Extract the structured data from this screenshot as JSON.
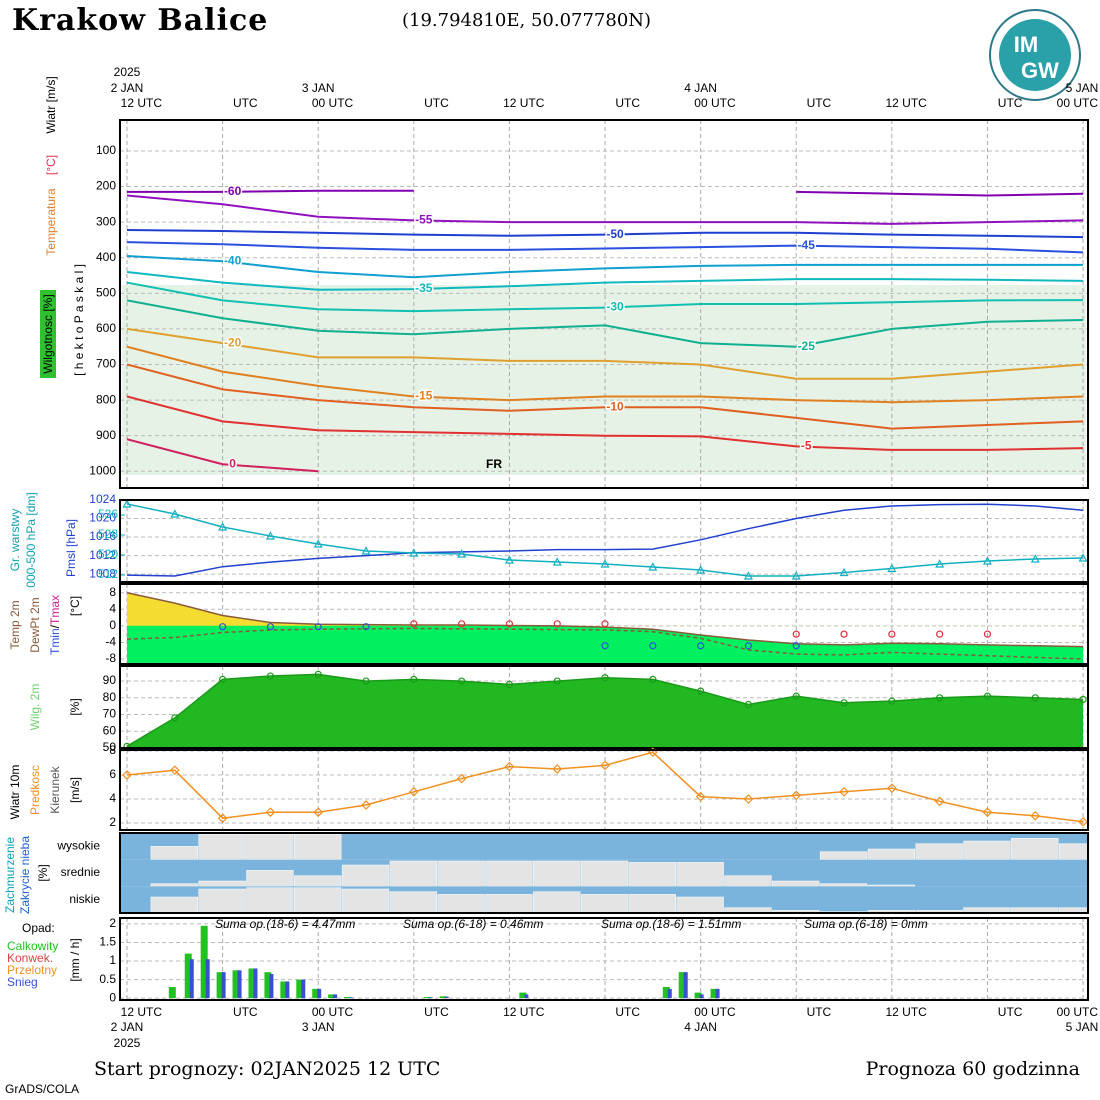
{
  "header": {
    "title": "Krakow Balice",
    "coords": "(19.794810E, 50.077780N)",
    "logo": [
      "IM",
      "GW"
    ]
  },
  "footer": {
    "start": "Start prognozy: 02JAN2025 12 UTC",
    "length": "Prognoza 60 godzinna",
    "credit": "GrADS/COLA"
  },
  "time_axis": {
    "year": "2025",
    "dates": [
      {
        "value": 0,
        "label": "2 JAN"
      },
      {
        "value": 12,
        "label": "3 JAN"
      },
      {
        "value": 36,
        "label": "4 JAN"
      },
      {
        "value": 60,
        "label": "5 JAN"
      }
    ],
    "xticks": [
      {
        "value": 0,
        "label": "12 UTC"
      },
      {
        "value": 6,
        "label": "UTC"
      },
      {
        "value": 12,
        "label": "00 UTC"
      },
      {
        "value": 18,
        "label": "UTC"
      },
      {
        "value": 24,
        "label": "12 UTC"
      },
      {
        "value": 30,
        "label": "UTC"
      },
      {
        "value": 36,
        "label": "00 UTC"
      },
      {
        "value": 42,
        "label": "UTC"
      },
      {
        "value": 48,
        "label": "12 UTC"
      },
      {
        "value": 54,
        "label": "UTC"
      },
      {
        "value": 60,
        "label": "00 UTC"
      }
    ]
  },
  "chart_data": [
    {
      "type": "line",
      "contour_labels": true,
      "grid": true,
      "xlim": [
        -0.44,
        60.31
      ],
      "ylim": [
        1047,
        13
      ],
      "yticks": [
        100,
        200,
        300,
        400,
        500,
        600,
        700,
        800,
        900,
        1000
      ],
      "y_label": "[ h e k t o P a s k a l ]",
      "axis_labels": [
        "Wiatr [m/s]",
        "Temperatura",
        "[°C]",
        "Wilgotnosc [%]"
      ],
      "annotations": [
        "FR"
      ],
      "x": [
        0,
        6,
        12,
        18,
        24,
        30,
        36,
        42,
        48,
        54,
        60
      ],
      "series": [
        {
          "name": "-60",
          "color": "#8000b0",
          "values": [
            215,
            215,
            212,
            212,
            null,
            null,
            null,
            215,
            220,
            225,
            220
          ]
        },
        {
          "name": "-55",
          "color": "#9010c0",
          "values": [
            225,
            250,
            285,
            295,
            300,
            300,
            300,
            300,
            305,
            300,
            295
          ]
        },
        {
          "name": "-50",
          "color": "#1f3fd0",
          "values": [
            322,
            325,
            330,
            335,
            338,
            335,
            330,
            330,
            335,
            338,
            342
          ]
        },
        {
          "name": "-45",
          "color": "#2a50e0",
          "values": [
            356,
            362,
            372,
            378,
            378,
            374,
            370,
            366,
            370,
            375,
            385
          ]
        },
        {
          "name": "-40",
          "color": "#10a0d0",
          "values": [
            395,
            410,
            440,
            455,
            440,
            430,
            423,
            420,
            420,
            420,
            420
          ]
        },
        {
          "name": "-35",
          "color": "#10b8c0",
          "values": [
            440,
            470,
            490,
            488,
            480,
            470,
            465,
            460,
            460,
            462,
            465
          ]
        },
        {
          "name": "-30",
          "color": "#10c0b0",
          "values": [
            470,
            520,
            545,
            550,
            545,
            540,
            530,
            530,
            525,
            520,
            519
          ]
        },
        {
          "name": "-25",
          "color": "#10b090",
          "values": [
            520,
            570,
            605,
            615,
            600,
            590,
            640,
            650,
            600,
            580,
            575
          ]
        },
        {
          "name": "-20",
          "color": "#e0a030",
          "values": [
            600,
            640,
            680,
            680,
            690,
            690,
            700,
            740,
            740,
            720,
            700
          ]
        },
        {
          "name": "-15",
          "color": "#e08020",
          "values": [
            650,
            720,
            760,
            790,
            800,
            790,
            790,
            800,
            806,
            800,
            790
          ]
        },
        {
          "name": "-10",
          "color": "#e06020",
          "values": [
            700,
            770,
            800,
            820,
            830,
            820,
            820,
            850,
            880,
            870,
            860
          ]
        },
        {
          "name": "-5",
          "color": "#e03030",
          "values": [
            790,
            860,
            885,
            890,
            895,
            900,
            902,
            930,
            940,
            940,
            935
          ]
        },
        {
          "name": "0",
          "color": "#d02060",
          "values": [
            910,
            980,
            1000,
            null,
            null,
            null,
            null,
            null,
            null,
            null,
            null
          ]
        }
      ]
    },
    {
      "type": "line",
      "grid": true,
      "xlim": [
        -0.44,
        60.31
      ],
      "ylim": [
        1006.3,
        1024
      ],
      "yticks": [
        1008,
        1012,
        1016,
        1020,
        1024
      ],
      "y2lim": [
        509.2,
        542
      ],
      "y2ticks": [
        512,
        520,
        528,
        536
      ],
      "y2color": "#10b0c0",
      "axis_labels": [
        "Gr. warstwy"
      ],
      "x": [
        0,
        3,
        6,
        9,
        12,
        15,
        18,
        21,
        24,
        27,
        30,
        33,
        36,
        39,
        42,
        45,
        48,
        51,
        54,
        57,
        60
      ],
      "series": [
        {
          "name": "Pmsl [hPa]",
          "color": "#2040d0",
          "values": [
            1007.8,
            1007.6,
            1009.6,
            1010.6,
            1011.4,
            1012.0,
            1012.6,
            1012.8,
            1013.0,
            1013.3,
            1013.3,
            1013.4,
            1015.4,
            1017.8,
            1020.0,
            1021.8,
            1022.7,
            1023.0,
            1023.1,
            1022.7,
            1021.8
          ]
        },
        {
          "name": "000-500 hPa [dm]",
          "color": "#10b0c0",
          "axis": "y2",
          "marker": "triangle",
          "values": [
            540.4,
            536.4,
            531.2,
            527.6,
            524.4,
            521.6,
            520.8,
            520.4,
            518.0,
            517.2,
            516.4,
            515.2,
            514.0,
            511.6,
            511.6,
            513.0,
            514.6,
            516.4,
            517.6,
            518.4,
            518.8
          ]
        }
      ]
    },
    {
      "type": "line",
      "grid": true,
      "xlim": [
        -0.44,
        60.31
      ],
      "ylim": [
        -9.2,
        10.1
      ],
      "yticks": [
        -8,
        -4,
        0,
        4,
        8
      ],
      "axis_labels": [
        "/",
        "[°C]"
      ],
      "x": [
        0,
        3,
        6,
        9,
        12,
        15,
        18,
        21,
        24,
        27,
        30,
        33,
        36,
        39,
        42,
        45,
        48,
        51,
        54,
        57,
        60
      ],
      "series": [
        {
          "name": "Temp 2m",
          "color": "#8a5a3a",
          "fill": "#00f060",
          "fill_positive": "#f4dc30",
          "values": [
            8,
            5.5,
            2.5,
            0.8,
            0.4,
            0.3,
            0.2,
            0.2,
            0.1,
            0,
            -0.3,
            -0.8,
            -2.2,
            -3.4,
            -4.3,
            -4.6,
            -4.2,
            -4.3,
            -4.6,
            -4.8,
            -5.0
          ]
        },
        {
          "name": "DewPt 2m",
          "color": "#8a5a3a",
          "dash": true,
          "values": [
            -3.2,
            -2.8,
            -1.6,
            -1.0,
            -0.8,
            -0.7,
            -0.6,
            -0.7,
            -0.8,
            -0.9,
            -1.0,
            -1.4,
            -3.0,
            -5.8,
            -6.8,
            -7.0,
            -6.4,
            -6.8,
            -7.2,
            -7.6,
            -8.0
          ]
        },
        {
          "name": "Tmin",
          "color": "#3050e0",
          "marker": "circle",
          "values": [
            null,
            null,
            -0.2,
            -0.2,
            -0.2,
            -0.2,
            null,
            null,
            null,
            null,
            -4.8,
            -4.8,
            -4.8,
            -4.8,
            -4.8,
            null,
            null,
            null,
            null,
            null,
            null
          ]
        },
        {
          "name": "Tmax",
          "color": "#e03040",
          "marker": "circle",
          "values": [
            null,
            null,
            null,
            null,
            null,
            null,
            0.5,
            0.5,
            0.5,
            0.5,
            0.5,
            null,
            null,
            null,
            -2,
            -2,
            -2,
            -2,
            -2,
            null,
            null
          ]
        }
      ]
    },
    {
      "type": "line",
      "grid": true,
      "xlim": [
        -0.44,
        60.31
      ],
      "ylim": [
        50,
        99
      ],
      "yticks": [
        50,
        60,
        70,
        80,
        90
      ],
      "axis_labels": [
        "[%]"
      ],
      "x": [
        0,
        3,
        6,
        9,
        12,
        15,
        18,
        21,
        24,
        27,
        30,
        33,
        36,
        39,
        42,
        45,
        48,
        51,
        54,
        57,
        60
      ],
      "series": [
        {
          "name": "Wilg. 2m",
          "color": "#1a9a1a",
          "fill": "#22b822",
          "marker": "circle",
          "values": [
            51,
            68,
            91,
            93,
            94,
            90,
            91,
            90,
            88,
            90,
            92,
            91,
            84,
            76,
            81,
            77,
            78,
            80,
            81,
            80,
            79
          ]
        }
      ]
    },
    {
      "type": "line",
      "grid": true,
      "xlim": [
        -0.44,
        60.31
      ],
      "ylim": [
        1.42,
        8.08
      ],
      "yticks": [
        2,
        4,
        6,
        8
      ],
      "axis_labels": [
        "Wiatr 10m",
        "Kierunek",
        "[m/s]"
      ],
      "x": [
        0,
        3,
        6,
        9,
        12,
        15,
        18,
        21,
        24,
        27,
        30,
        33,
        36,
        39,
        42,
        45,
        48,
        51,
        54,
        57,
        60
      ],
      "series": [
        {
          "name": "Predkosc",
          "color": "#f09020",
          "marker": "diamond",
          "values": [
            6.0,
            6.4,
            2.4,
            2.9,
            2.9,
            3.5,
            4.6,
            5.7,
            6.7,
            6.5,
            6.8,
            7.9,
            4.2,
            4.0,
            4.3,
            4.6,
            4.9,
            3.8,
            2.9,
            2.6,
            2.1
          ]
        }
      ]
    },
    {
      "type": "cloud",
      "xlim": [
        -0.44,
        60.31
      ],
      "ylim": [
        0,
        100
      ],
      "background": "#7ab4dc",
      "color": "#e4e4e4",
      "axis_labels": [
        "Zachmurzenie",
        "Zakrycie nieba",
        "[%]"
      ],
      "x": [
        0,
        3,
        6,
        9,
        12,
        15,
        18,
        21,
        24,
        27,
        30,
        33,
        36,
        39,
        42,
        45,
        48,
        51,
        54,
        57,
        60
      ],
      "series": [
        {
          "name": "wysokie",
          "values": [
            0,
            50,
            95,
            95,
            95,
            0,
            0,
            0,
            0,
            0,
            0,
            0,
            0,
            0,
            0,
            30,
            40,
            60,
            70,
            80,
            60
          ]
        },
        {
          "name": "srednie",
          "values": [
            0,
            10,
            20,
            60,
            40,
            80,
            95,
            95,
            95,
            95,
            95,
            90,
            90,
            40,
            20,
            10,
            5,
            0,
            0,
            0,
            0
          ]
        },
        {
          "name": "niskie",
          "values": [
            0,
            60,
            90,
            95,
            95,
            90,
            80,
            70,
            70,
            80,
            70,
            70,
            60,
            20,
            10,
            5,
            10,
            10,
            20,
            20,
            20
          ]
        }
      ]
    },
    {
      "type": "bar",
      "grid": true,
      "xlim": [
        -0.44,
        60.31
      ],
      "ylim": [
        -0.05,
        2.16
      ],
      "yticks": [
        0,
        0.5,
        1,
        1.5,
        2
      ],
      "axis_labels": [
        "Opad:",
        "[mm / h]"
      ],
      "legend_extra": [
        {
          "name": "Konwek.",
          "color": "#e04040"
        },
        {
          "name": "Przelotny",
          "color": "#f09020"
        }
      ],
      "annotations": [
        "Suma op.(18-6) = 4.47mm",
        "Suma op.(6-18) = 0.46mm",
        "Suma op.(18-6) = 1.51mm",
        "Suma op.(6-18) = 0mm"
      ],
      "x": [
        3,
        4,
        5,
        6,
        7,
        8,
        9,
        10,
        11,
        12,
        13,
        14,
        19,
        20,
        25,
        34,
        35,
        36,
        37
      ],
      "series": [
        {
          "name": "Calkowity",
          "color": "#22c022",
          "values": [
            0.3,
            1.2,
            1.95,
            0.7,
            0.75,
            0.8,
            0.7,
            0.45,
            0.5,
            0.25,
            0.1,
            0.03,
            0.03,
            0.05,
            0.15,
            0.3,
            0.7,
            0.15,
            0.25
          ]
        },
        {
          "name": "Snieg",
          "color": "#3a50d0",
          "values": [
            0,
            1.05,
            1.05,
            0.7,
            0.75,
            0.8,
            0.65,
            0.45,
            0.5,
            0.25,
            0.1,
            0.02,
            0.02,
            0.04,
            0.1,
            0.25,
            0.7,
            0.1,
            0.25
          ]
        }
      ]
    }
  ]
}
